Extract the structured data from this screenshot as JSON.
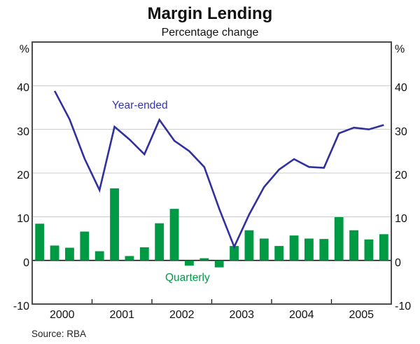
{
  "title": "Margin Lending",
  "subtitle": "Percentage change",
  "source": "Source: RBA",
  "axis": {
    "unit_left": "%",
    "unit_right": "%",
    "yticks": [
      40,
      30,
      20,
      10,
      0,
      -10
    ],
    "ylim": [
      -10,
      50
    ],
    "grid": "horizontal-light",
    "years": [
      "2000",
      "2001",
      "2002",
      "2003",
      "2004",
      "2005"
    ]
  },
  "series_labels": {
    "line": "Year-ended",
    "bars": "Quarterly"
  },
  "colors": {
    "line": "#30309f",
    "line_label": "#3434b2",
    "bar": "#009a45",
    "bar_label": "#009a45",
    "grid": "#c9c9c9",
    "zero_line": "#111111",
    "frame": "#4d4d4d",
    "text": "#111111"
  },
  "chart_data": {
    "type": "bar+line",
    "title": "Margin Lending",
    "subtitle": "Percentage change",
    "ylabel": "%",
    "ylim": [
      -10,
      50
    ],
    "legend_position": "inline-annotations",
    "quarters": [
      "2000 Q1",
      "2000 Q2",
      "2000 Q3",
      "2000 Q4",
      "2001 Q1",
      "2001 Q2",
      "2001 Q3",
      "2001 Q4",
      "2002 Q1",
      "2002 Q2",
      "2002 Q3",
      "2002 Q4",
      "2003 Q1",
      "2003 Q2",
      "2003 Q3",
      "2003 Q4",
      "2004 Q1",
      "2004 Q2",
      "2004 Q3",
      "2004 Q4",
      "2005 Q1",
      "2005 Q2",
      "2005 Q3",
      "2005 Q4"
    ],
    "series": [
      {
        "name": "Quarterly",
        "type": "bar",
        "values": [
          8.4,
          3.4,
          2.9,
          6.6,
          2.1,
          16.5,
          1.0,
          3.0,
          8.5,
          11.8,
          -1.2,
          0.5,
          -1.6,
          3.3,
          6.9,
          5.0,
          3.3,
          5.7,
          5.0,
          4.9,
          9.9,
          6.9,
          4.8,
          6.0
        ]
      },
      {
        "name": "Year-ended",
        "type": "line",
        "values": [
          null,
          38.8,
          32.3,
          23.3,
          16.1,
          30.6,
          27.7,
          24.3,
          32.2,
          27.4,
          25.0,
          21.4,
          11.8,
          3.1,
          10.5,
          16.8,
          20.8,
          23.2,
          21.4,
          21.2,
          29.1,
          30.4,
          30.0,
          31.0
        ]
      }
    ]
  }
}
